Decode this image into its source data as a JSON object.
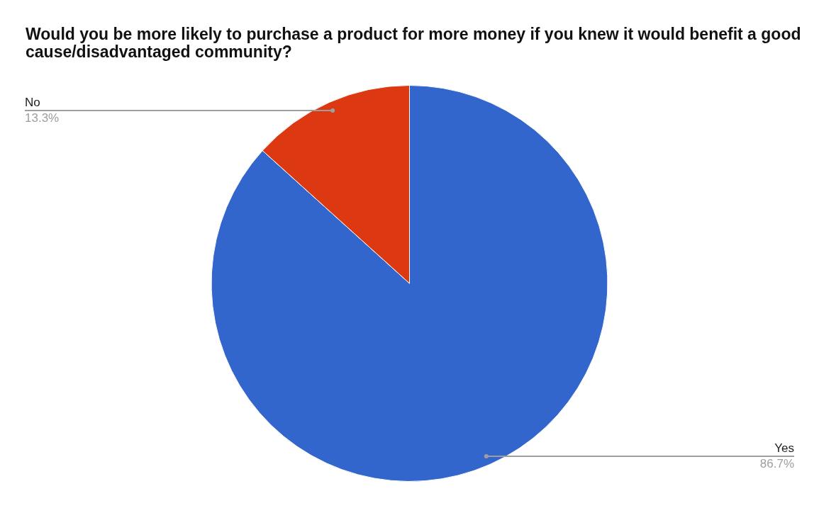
{
  "chart_data": {
    "type": "pie",
    "title": "Would you be more likely to purchase a product for more money if you knew it would benefit a good cause/disadvantaged community?",
    "categories": [
      "Yes",
      "No"
    ],
    "values": [
      86.7,
      13.3
    ],
    "colors": [
      "#3366cc",
      "#dc3912"
    ],
    "value_labels": [
      "86.7%",
      "13.3%"
    ],
    "legend": false
  }
}
